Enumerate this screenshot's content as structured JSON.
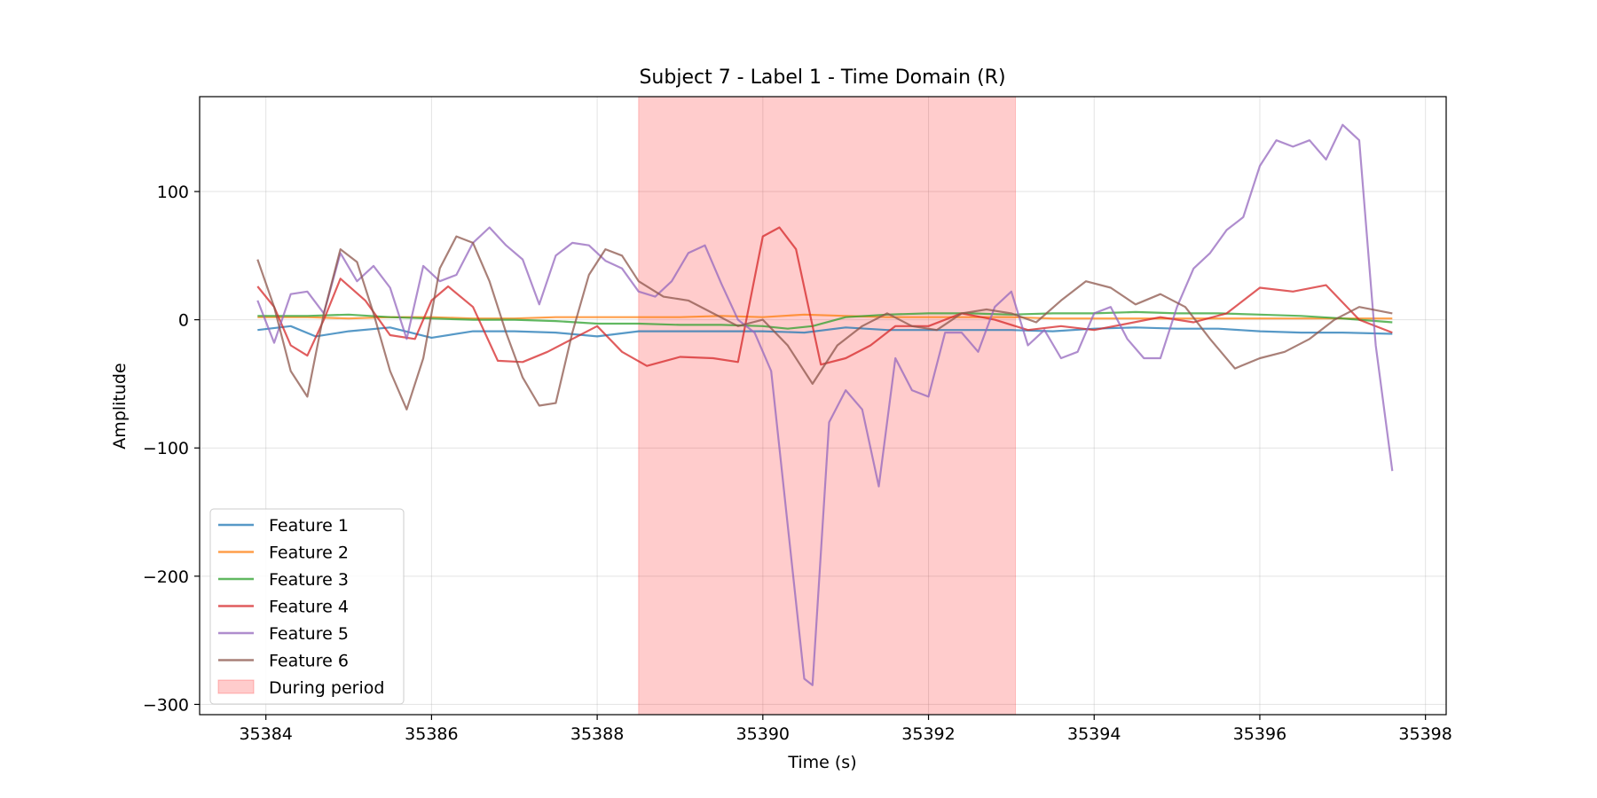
{
  "chart_data": {
    "type": "line",
    "title": "Subject 7 - Label 1 - Time Domain (R)",
    "xlabel": "Time (s)",
    "ylabel": "Amplitude",
    "xlim": [
      35383.2,
      35398.25
    ],
    "ylim": [
      -308,
      174
    ],
    "xticks": [
      35384,
      35386,
      35388,
      35390,
      35392,
      35394,
      35396,
      35398
    ],
    "yticks": [
      -300,
      -200,
      -100,
      0,
      100
    ],
    "grid": true,
    "legend_position": "lower-left",
    "shaded_region": {
      "label": "During period",
      "x0": 35388.5,
      "x1": 35393.05,
      "color": "#ff0000"
    },
    "series": [
      {
        "name": "Feature 1",
        "color": "#1f77b4",
        "x": [
          35383.9,
          35384.3,
          35384.6,
          35385.0,
          35385.5,
          35386.0,
          35386.5,
          35387.0,
          35387.5,
          35388.0,
          35388.5,
          35389.0,
          35389.5,
          35390.0,
          35390.5,
          35391.0,
          35391.5,
          35392.0,
          35392.5,
          35393.0,
          35393.5,
          35394.0,
          35394.5,
          35395.0,
          35395.5,
          35396.0,
          35396.5,
          35397.0,
          35397.6
        ],
        "values": [
          -8,
          -5,
          -13,
          -9,
          -6,
          -14,
          -9,
          -9,
          -10,
          -13,
          -9,
          -9,
          -9,
          -9,
          -10,
          -6,
          -8,
          -8,
          -8,
          -8,
          -9,
          -7,
          -6,
          -7,
          -7,
          -9,
          -10,
          -10,
          -11
        ]
      },
      {
        "name": "Feature 2",
        "color": "#ff7f0e",
        "x": [
          35383.9,
          35384.5,
          35385.0,
          35385.5,
          35386.0,
          35386.5,
          35387.0,
          35387.5,
          35388.0,
          35388.5,
          35389.0,
          35389.5,
          35390.0,
          35390.5,
          35391.0,
          35391.5,
          35392.0,
          35392.5,
          35393.0,
          35393.5,
          35394.0,
          35394.5,
          35395.0,
          35395.5,
          35396.0,
          35396.5,
          35397.0,
          35397.6
        ],
        "values": [
          2,
          2,
          1,
          2,
          2,
          1,
          1,
          2,
          2,
          2,
          2,
          3,
          2,
          4,
          3,
          2,
          2,
          2,
          2,
          1,
          1,
          1,
          1,
          1,
          1,
          1,
          1,
          1
        ]
      },
      {
        "name": "Feature 3",
        "color": "#2ca02c",
        "x": [
          35383.9,
          35384.5,
          35385.0,
          35385.5,
          35386.0,
          35386.5,
          35387.0,
          35387.5,
          35388.0,
          35388.5,
          35389.0,
          35389.5,
          35390.0,
          35390.3,
          35390.6,
          35391.0,
          35391.5,
          35392.0,
          35392.5,
          35393.0,
          35393.5,
          35394.0,
          35394.5,
          35395.0,
          35395.5,
          35396.0,
          35396.5,
          35397.0,
          35397.6
        ],
        "values": [
          3,
          3,
          4,
          2,
          1,
          0,
          0,
          -1,
          -3,
          -3,
          -4,
          -4,
          -5,
          -7,
          -5,
          2,
          4,
          5,
          5,
          4,
          5,
          5,
          6,
          5,
          5,
          4,
          3,
          1,
          -2
        ]
      },
      {
        "name": "Feature 4",
        "color": "#d62728",
        "x": [
          35383.9,
          35384.1,
          35384.3,
          35384.5,
          35384.7,
          35384.9,
          35385.2,
          35385.5,
          35385.8,
          35386.0,
          35386.2,
          35386.5,
          35386.8,
          35387.1,
          35387.4,
          35387.7,
          35388.0,
          35388.3,
          35388.6,
          35389.0,
          35389.4,
          35389.7,
          35390.0,
          35390.2,
          35390.4,
          35390.7,
          35391.0,
          35391.3,
          35391.6,
          35392.0,
          35392.4,
          35392.8,
          35393.2,
          35393.6,
          35394.0,
          35394.4,
          35394.8,
          35395.2,
          35395.6,
          35396.0,
          35396.4,
          35396.8,
          35397.2,
          35397.6
        ],
        "values": [
          26,
          10,
          -20,
          -28,
          0,
          32,
          15,
          -12,
          -15,
          15,
          26,
          10,
          -32,
          -33,
          -25,
          -15,
          -5,
          -25,
          -36,
          -29,
          -30,
          -33,
          65,
          72,
          55,
          -35,
          -30,
          -20,
          -5,
          -5,
          5,
          0,
          -8,
          -5,
          -8,
          -3,
          2,
          -2,
          5,
          25,
          22,
          27,
          0,
          -10
        ]
      },
      {
        "name": "Feature 5",
        "color": "#9467bd",
        "x": [
          35383.9,
          35384.1,
          35384.3,
          35384.5,
          35384.7,
          35384.9,
          35385.1,
          35385.3,
          35385.5,
          35385.7,
          35385.9,
          35386.1,
          35386.3,
          35386.5,
          35386.7,
          35386.9,
          35387.1,
          35387.3,
          35387.5,
          35387.7,
          35387.9,
          35388.1,
          35388.3,
          35388.5,
          35388.7,
          35388.9,
          35389.1,
          35389.3,
          35389.5,
          35389.7,
          35389.9,
          35390.1,
          35390.3,
          35390.5,
          35390.6,
          35390.8,
          35391.0,
          35391.2,
          35391.4,
          35391.6,
          35391.8,
          35392.0,
          35392.2,
          35392.4,
          35392.6,
          35392.8,
          35393.0,
          35393.2,
          35393.4,
          35393.6,
          35393.8,
          35394.0,
          35394.2,
          35394.4,
          35394.6,
          35394.8,
          35395.0,
          35395.2,
          35395.4,
          35395.6,
          35395.8,
          35396.0,
          35396.2,
          35396.4,
          35396.6,
          35396.8,
          35397.0,
          35397.2,
          35397.4,
          35397.6
        ],
        "values": [
          15,
          -18,
          20,
          22,
          5,
          52,
          30,
          42,
          25,
          -15,
          42,
          30,
          35,
          60,
          72,
          58,
          47,
          12,
          50,
          60,
          58,
          46,
          40,
          22,
          18,
          30,
          52,
          58,
          28,
          0,
          -10,
          -40,
          -160,
          -280,
          -285,
          -80,
          -55,
          -70,
          -130,
          -30,
          -55,
          -60,
          -10,
          -10,
          -25,
          10,
          22,
          -20,
          -8,
          -30,
          -25,
          5,
          10,
          -15,
          -30,
          -30,
          10,
          40,
          52,
          70,
          80,
          120,
          140,
          135,
          140,
          125,
          152,
          140,
          -20,
          -118
        ]
      },
      {
        "name": "Feature 6",
        "color": "#8c564b",
        "x": [
          35383.9,
          35384.1,
          35384.3,
          35384.5,
          35384.7,
          35384.9,
          35385.1,
          35385.3,
          35385.5,
          35385.7,
          35385.9,
          35386.1,
          35386.3,
          35386.5,
          35386.7,
          35386.9,
          35387.1,
          35387.3,
          35387.5,
          35387.7,
          35387.9,
          35388.1,
          35388.3,
          35388.5,
          35388.8,
          35389.1,
          35389.4,
          35389.7,
          35390.0,
          35390.3,
          35390.6,
          35390.9,
          35391.2,
          35391.5,
          35391.8,
          35392.1,
          35392.4,
          35392.7,
          35393.0,
          35393.3,
          35393.6,
          35393.9,
          35394.2,
          35394.5,
          35394.8,
          35395.1,
          35395.4,
          35395.7,
          35396.0,
          35396.3,
          35396.6,
          35396.9,
          35397.2,
          35397.6
        ],
        "values": [
          47,
          10,
          -40,
          -60,
          5,
          55,
          45,
          5,
          -40,
          -70,
          -30,
          40,
          65,
          60,
          30,
          -10,
          -45,
          -67,
          -65,
          -10,
          35,
          55,
          50,
          30,
          18,
          15,
          5,
          -5,
          0,
          -20,
          -50,
          -20,
          -5,
          5,
          -5,
          -8,
          5,
          8,
          5,
          -2,
          15,
          30,
          25,
          12,
          20,
          10,
          -15,
          -38,
          -30,
          -25,
          -15,
          0,
          10,
          5
        ]
      }
    ]
  }
}
